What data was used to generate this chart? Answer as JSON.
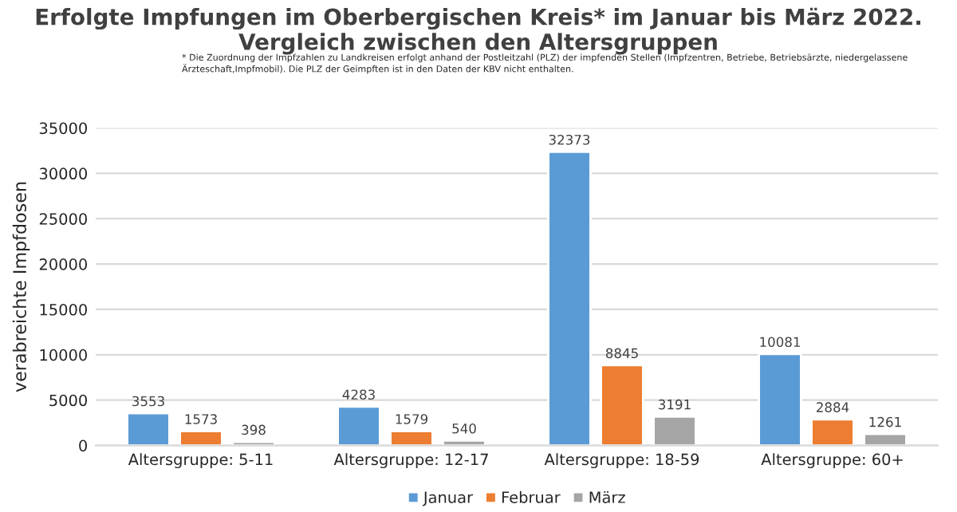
{
  "chart_data": {
    "type": "bar",
    "title": "Erfolgte Impfungen im Oberbergischen Kreis* im Januar bis März 2022.\nVergleich zwischen den Altersgruppen",
    "subtitle": "* Die Zuordnung der Impfzahlen zu Landkreisen erfolgt anhand der Postleitzahl (PLZ) der impfenden Stellen (Impfzentren, Betriebe, Betriebsärzte, niedergelassene\nÄrzteschaft,Impfmobil). Die PLZ der Geimpften ist in den Daten der KBV nicht enthalten.",
    "ylabel": "verabreichte Impfdosen",
    "categories": [
      "Altersgruppe: 5-11",
      "Altersgruppe: 12-17",
      "Altersgruppe: 18-59",
      "Altersgruppe: 60+"
    ],
    "series": [
      {
        "name": "Januar",
        "color": "#5b9bd5",
        "values": [
          3553,
          4283,
          32373,
          10081
        ]
      },
      {
        "name": "Februar",
        "color": "#ed7d31",
        "values": [
          1573,
          1579,
          8845,
          2884
        ]
      },
      {
        "name": "März",
        "color": "#a5a5a5",
        "values": [
          398,
          540,
          3191,
          1261
        ]
      }
    ],
    "ylim": [
      0,
      35000
    ],
    "yticks": [
      0,
      5000,
      10000,
      15000,
      20000,
      25000,
      30000,
      35000
    ],
    "grid": "y",
    "legend": "bottom",
    "data_labels": true
  }
}
